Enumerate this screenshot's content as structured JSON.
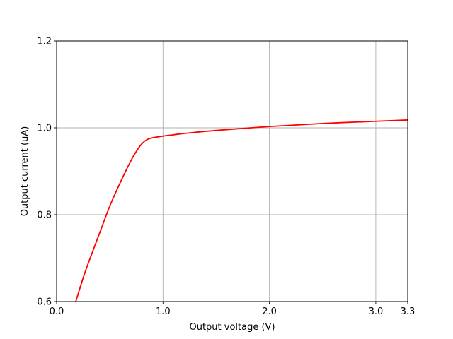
{
  "chart_data": {
    "type": "line",
    "title": "",
    "xlabel": "Output voltage (V)",
    "ylabel": "Output current (uA)",
    "xlim": [
      0.0,
      3.3
    ],
    "ylim": [
      0.6,
      1.2
    ],
    "grid": true,
    "x_ticks": [
      0.0,
      1.0,
      2.0,
      3.0,
      3.3
    ],
    "x_tick_labels": [
      "0.0",
      "1.0",
      "2.0",
      "3.0",
      "3.3"
    ],
    "y_ticks": [
      0.6,
      0.8,
      1.0,
      1.2
    ],
    "y_tick_labels": [
      "0.6",
      "0.8",
      "1.0",
      "1.2"
    ],
    "series": [
      {
        "name": "Output current",
        "color": "#ff0000",
        "x": [
          0.18,
          0.25,
          0.3,
          0.4,
          0.5,
          0.6,
          0.7,
          0.75,
          0.8,
          0.85,
          0.9,
          0.95,
          1.0,
          1.1,
          1.2,
          1.5,
          2.0,
          2.5,
          3.0,
          3.3
        ],
        "y": [
          0.6,
          0.655,
          0.69,
          0.755,
          0.82,
          0.875,
          0.925,
          0.946,
          0.963,
          0.973,
          0.977,
          0.979,
          0.981,
          0.984,
          0.987,
          0.994,
          1.003,
          1.01,
          1.015,
          1.018
        ]
      }
    ]
  }
}
